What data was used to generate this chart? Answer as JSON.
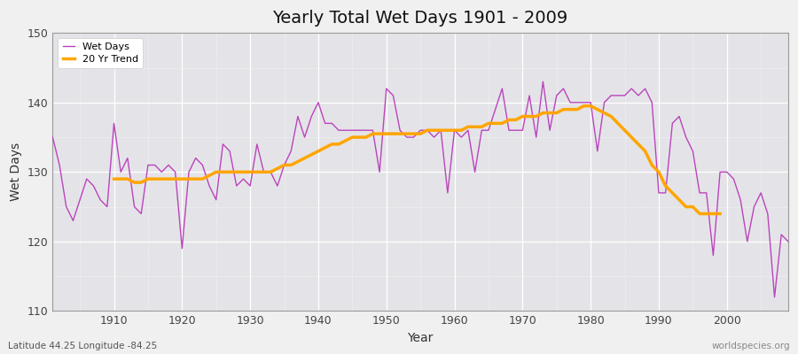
{
  "title": "Yearly Total Wet Days 1901 - 2009",
  "xlabel": "Year",
  "ylabel": "Wet Days",
  "lat_lon_label": "Latitude 44.25 Longitude -84.25",
  "watermark": "worldspecies.org",
  "ylim": [
    110,
    150
  ],
  "yticks": [
    110,
    120,
    130,
    140,
    150
  ],
  "wet_days_color": "#bb44bb",
  "trend_color": "#ffa500",
  "fig_bg_color": "#f0f0f0",
  "plot_bg_color": "#e4e4e8",
  "legend_wet": "Wet Days",
  "legend_trend": "20 Yr Trend",
  "years": [
    1901,
    1902,
    1903,
    1904,
    1905,
    1906,
    1907,
    1908,
    1909,
    1910,
    1911,
    1912,
    1913,
    1914,
    1915,
    1916,
    1917,
    1918,
    1919,
    1920,
    1921,
    1922,
    1923,
    1924,
    1925,
    1926,
    1927,
    1928,
    1929,
    1930,
    1931,
    1932,
    1933,
    1934,
    1935,
    1936,
    1937,
    1938,
    1939,
    1940,
    1941,
    1942,
    1943,
    1944,
    1945,
    1946,
    1947,
    1948,
    1949,
    1950,
    1951,
    1952,
    1953,
    1954,
    1955,
    1956,
    1957,
    1958,
    1959,
    1960,
    1961,
    1962,
    1963,
    1964,
    1965,
    1966,
    1967,
    1968,
    1969,
    1970,
    1971,
    1972,
    1973,
    1974,
    1975,
    1976,
    1977,
    1978,
    1979,
    1980,
    1981,
    1982,
    1983,
    1984,
    1985,
    1986,
    1987,
    1988,
    1989,
    1990,
    1991,
    1992,
    1993,
    1994,
    1995,
    1996,
    1997,
    1998,
    1999,
    2000,
    2001,
    2002,
    2003,
    2004,
    2005,
    2006,
    2007,
    2008,
    2009
  ],
  "wet_days": [
    135,
    131,
    125,
    123,
    126,
    129,
    128,
    126,
    125,
    137,
    130,
    132,
    125,
    124,
    131,
    131,
    130,
    131,
    130,
    119,
    130,
    132,
    131,
    128,
    126,
    134,
    133,
    128,
    129,
    128,
    134,
    130,
    130,
    128,
    131,
    133,
    138,
    135,
    138,
    140,
    137,
    137,
    136,
    136,
    136,
    136,
    136,
    136,
    130,
    142,
    141,
    136,
    135,
    135,
    136,
    136,
    135,
    136,
    127,
    136,
    135,
    136,
    130,
    136,
    136,
    139,
    142,
    136,
    136,
    136,
    141,
    135,
    143,
    136,
    141,
    142,
    140,
    140,
    140,
    140,
    133,
    140,
    141,
    141,
    141,
    142,
    141,
    142,
    140,
    127,
    127,
    137,
    138,
    135,
    133,
    127,
    127,
    118,
    130,
    130,
    129,
    126,
    120,
    125,
    127,
    124,
    112,
    121,
    120
  ],
  "trend": [
    null,
    null,
    null,
    null,
    null,
    null,
    null,
    null,
    null,
    129,
    129,
    129,
    128.5,
    128.5,
    129,
    129,
    129,
    129,
    129,
    129,
    129,
    129,
    129,
    129.5,
    130,
    130,
    130,
    130,
    130,
    130,
    130,
    130,
    130,
    130.5,
    131,
    131,
    131.5,
    132,
    132.5,
    133,
    133.5,
    134,
    134,
    134.5,
    135,
    135,
    135,
    135.5,
    135.5,
    135.5,
    135.5,
    135.5,
    135.5,
    135.5,
    135.5,
    136,
    136,
    136,
    136,
    136,
    136,
    136.5,
    136.5,
    136.5,
    137,
    137,
    137,
    137.5,
    137.5,
    138,
    138,
    138,
    138.5,
    138.5,
    138.5,
    139,
    139,
    139,
    139.5,
    139.5,
    139,
    138.5,
    138,
    137,
    136,
    135,
    134,
    133,
    131,
    130,
    128,
    127,
    126,
    125,
    125,
    124,
    124,
    124,
    124
  ]
}
